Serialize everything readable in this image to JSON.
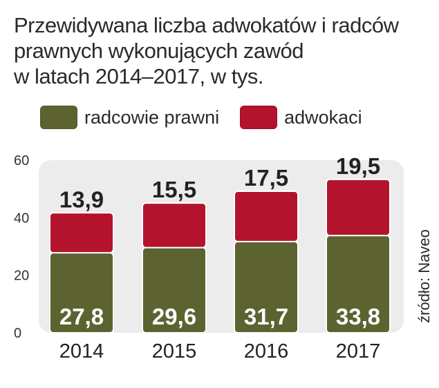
{
  "title_lines": [
    "Przewidywana liczba adwokatów i radców",
    "prawnych wykonujących zawód",
    "w latach 2014–2017, w tys."
  ],
  "source": "źródło: Naveo",
  "colors": {
    "radcowie": "#5c6330",
    "adwokaci": "#b4132d",
    "panel": "#ececec",
    "text": "#222222"
  },
  "chart_data": {
    "type": "bar",
    "stacked": true,
    "title": "Przewidywana liczba adwokatów i radców prawnych wykonujących zawód w latach 2014–2017, w tys.",
    "categories": [
      "2014",
      "2015",
      "2016",
      "2017"
    ],
    "series": [
      {
        "name": "radcowie prawni",
        "values": [
          27.8,
          29.6,
          31.7,
          33.8
        ]
      },
      {
        "name": "adwokaci",
        "values": [
          13.9,
          15.5,
          17.5,
          19.5
        ]
      }
    ],
    "value_labels": {
      "radcowie prawni": [
        "27,8",
        "29,6",
        "31,7",
        "33,8"
      ],
      "adwokaci": [
        "13,9",
        "15,5",
        "17,5",
        "19,5"
      ]
    },
    "yticks": [
      "0",
      "20",
      "40",
      "60"
    ],
    "ylim": [
      0,
      60
    ],
    "grid": false,
    "legend": "top-left"
  }
}
